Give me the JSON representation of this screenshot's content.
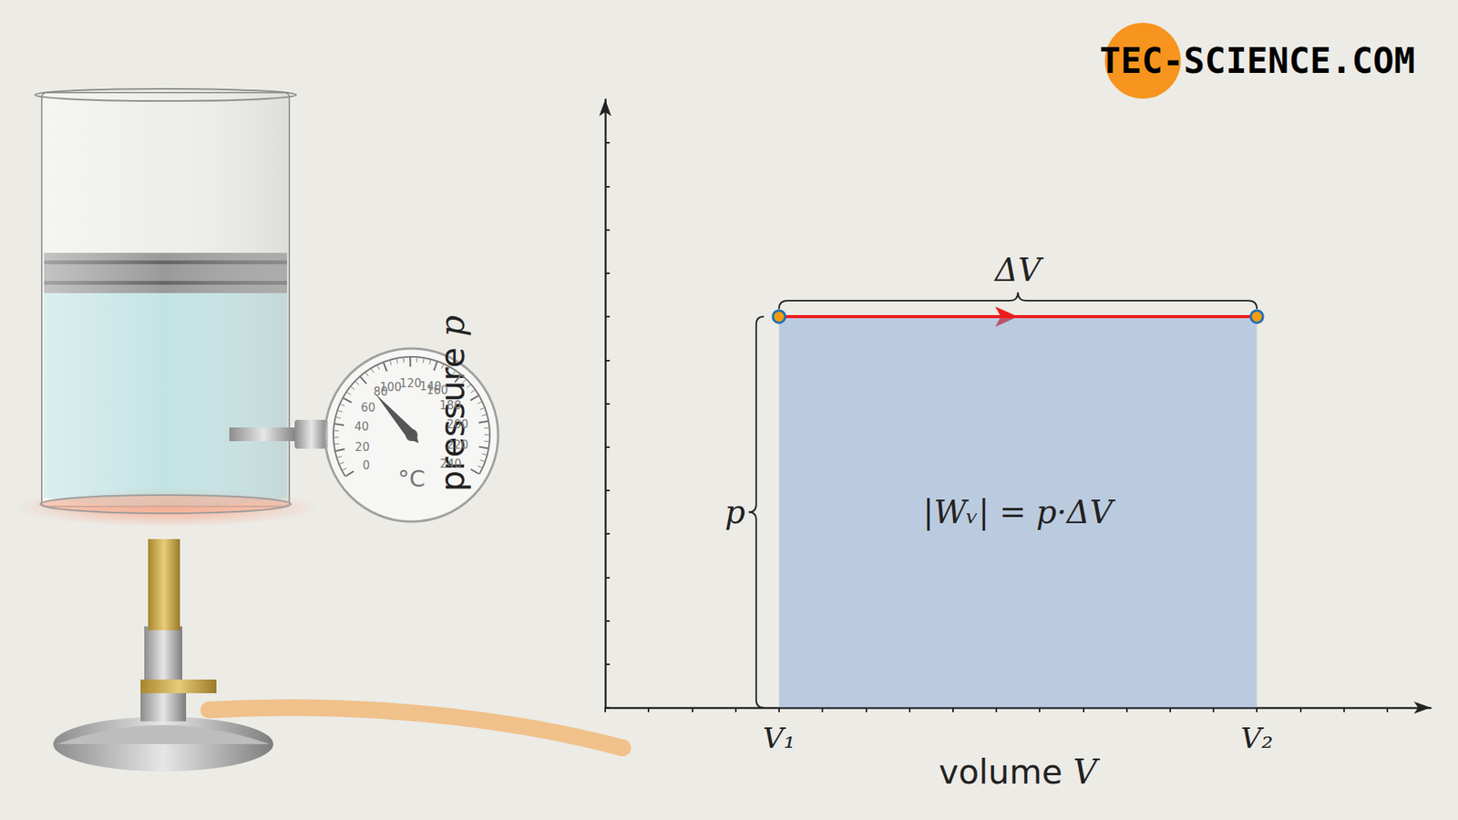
{
  "chart_data": {
    "type": "line",
    "x_label": "volume V",
    "y_label": "pressure p",
    "x": [
      4,
      15
    ],
    "values": [
      9,
      9
    ],
    "color": "#ee1c1c",
    "marker": "circle",
    "xlim": [
      0,
      19
    ],
    "xticks": [
      0,
      1,
      2,
      3,
      4,
      5,
      6,
      7,
      8,
      9,
      10,
      11,
      12,
      13,
      14,
      15,
      16,
      17,
      18
    ],
    "ylim": [
      0,
      14
    ],
    "yticks": [
      0,
      1,
      2,
      3,
      4,
      5,
      6,
      7,
      8,
      9,
      10,
      11,
      12,
      13
    ],
    "tick_labels": false,
    "grid": false,
    "x_marks": [
      {
        "value": 4,
        "label": "V₁"
      },
      {
        "value": 15,
        "label": "V₂"
      }
    ],
    "y_marks": [
      {
        "value": 9,
        "label": "p"
      }
    ],
    "span_label": "ΔV",
    "area_label": "|Wᵥ| = p·ΔV",
    "source": "TEC-SCIENCE.COM",
    "thermometer": {
      "min": 0,
      "max": 240,
      "ticks": [
        0,
        20,
        40,
        60,
        80,
        100,
        120,
        140,
        160,
        180,
        200,
        220,
        240
      ],
      "value": 80,
      "unit": "°C"
    }
  }
}
